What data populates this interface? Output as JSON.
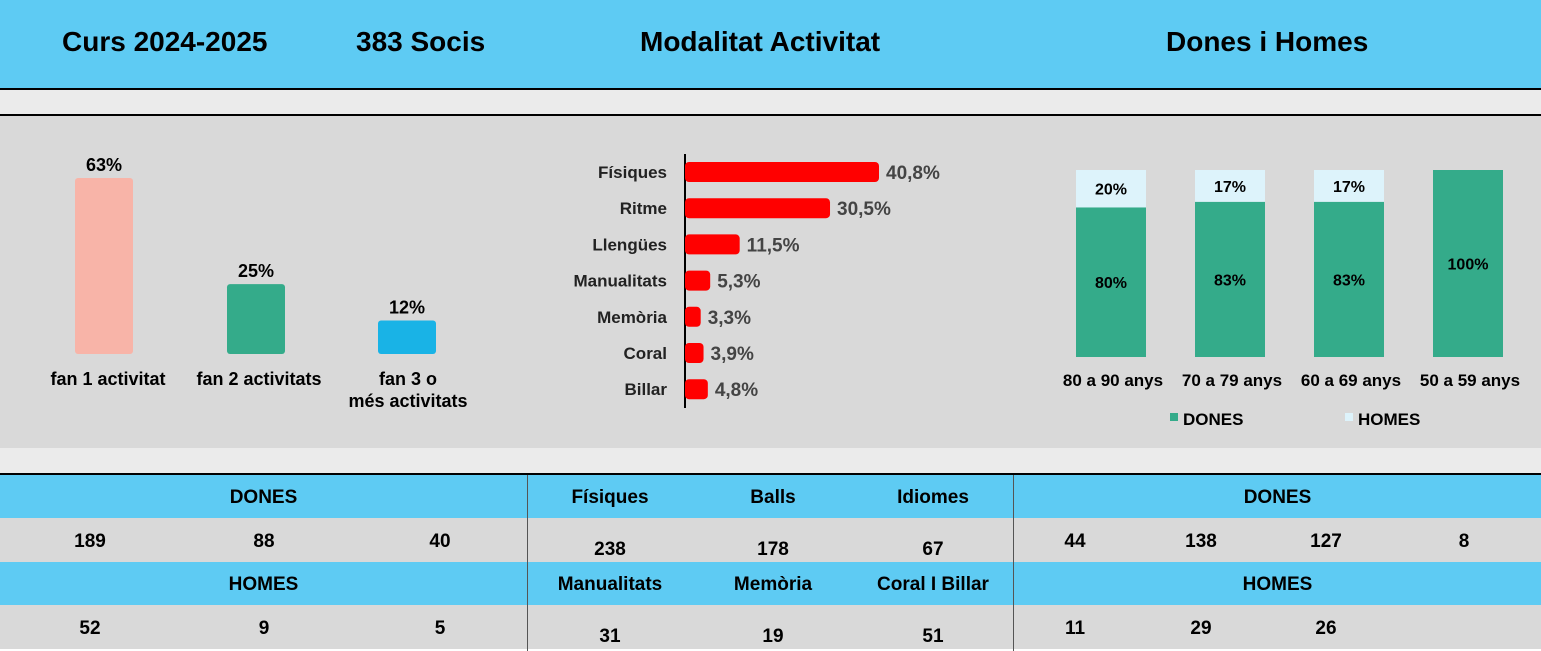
{
  "header": {
    "course": "Curs 2024-2025",
    "members": "383 Socis",
    "modality": "Modalitat Activitat",
    "gender": "Dones i Homes"
  },
  "chart_data": [
    {
      "type": "bar",
      "categories": [
        "fan 1 activitat",
        "fan 2 activitats",
        "fan 3 o més activitats"
      ],
      "values": [
        63,
        25,
        12
      ],
      "value_labels": [
        "63%",
        "25%",
        "12%"
      ],
      "colors": [
        "#f8b4a8",
        "#34ab8a",
        "#19b3e6"
      ],
      "ylim": [
        0,
        63
      ]
    },
    {
      "type": "bar",
      "orientation": "horizontal",
      "categories": [
        "Físiques",
        "Ritme",
        "Llengües",
        "Manualitats",
        "Memòria",
        "Coral",
        "Billar"
      ],
      "values": [
        40.8,
        30.5,
        11.5,
        5.3,
        3.3,
        3.9,
        4.8
      ],
      "value_labels": [
        "40,8%",
        "30,5%",
        "11,5%",
        "5,3%",
        "3,3%",
        "3,9%",
        "4,8%"
      ],
      "color": "#ff0000",
      "xlim": [
        0,
        40.8
      ]
    },
    {
      "type": "bar",
      "stacked": true,
      "categories": [
        "80 a 90 anys",
        "70 a 79 anys",
        "60 a 69 anys",
        "50 a 59 anys"
      ],
      "series": [
        {
          "name": "DONES",
          "values": [
            80,
            83,
            83,
            100
          ],
          "labels": [
            "80%",
            "83%",
            "83%",
            "100%"
          ],
          "color": "#34ab8a"
        },
        {
          "name": "HOMES",
          "values": [
            20,
            17,
            17,
            0
          ],
          "labels": [
            "20%",
            "17%",
            "17%",
            ""
          ],
          "color": "#ddf3fb"
        }
      ],
      "ylim": [
        0,
        100
      ],
      "legend": "bottom"
    }
  ],
  "table": {
    "left": {
      "women_label": "DONES",
      "women": [
        "189",
        "88",
        "40"
      ],
      "men_label": "HOMES",
      "men": [
        "52",
        "9",
        "5"
      ]
    },
    "middle": {
      "headers1": [
        "Físiques",
        "Balls",
        "Idiomes"
      ],
      "values1": [
        "238",
        "178",
        "67"
      ],
      "headers2": [
        "Manualitats",
        "Memòria",
        "Coral I Billar"
      ],
      "values2": [
        "31",
        "19",
        "51"
      ]
    },
    "right": {
      "women_label": "DONES",
      "women": [
        "44",
        "138",
        "127",
        "8"
      ],
      "men_label": "HOMES",
      "men": [
        "11",
        "29",
        "26"
      ]
    }
  }
}
